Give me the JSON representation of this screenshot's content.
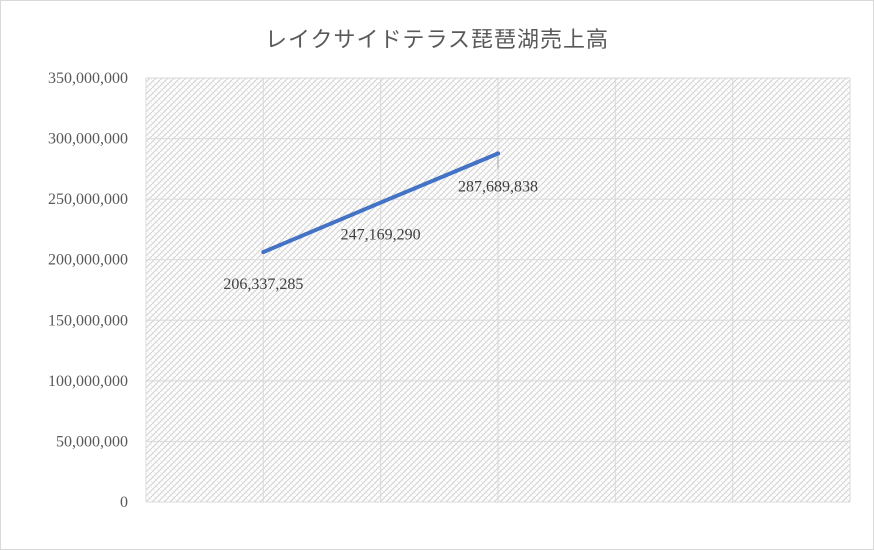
{
  "chart_data": {
    "type": "line",
    "title": "レイクサイドテラス琵琶湖売上高",
    "xlabel": "",
    "ylabel": "",
    "categories": [
      "",
      "",
      ""
    ],
    "series": [
      {
        "values": [
          206337285,
          247169290,
          287689838
        ],
        "data_labels": [
          "206,337,285",
          "247,169,290",
          "287,689,838"
        ],
        "color": "#4472c4"
      }
    ],
    "ylim": [
      0,
      350000000
    ],
    "y_ticks": [
      0,
      50000000,
      100000000,
      150000000,
      200000000,
      250000000,
      300000000,
      350000000
    ],
    "y_tick_labels": [
      "0",
      "50,000,000",
      "100,000,000",
      "150,000,000",
      "200,000,000",
      "250,000,000",
      "300,000,000",
      "350,000,000"
    ],
    "grid": true,
    "legend": "none",
    "plot_area_pattern": "diagonal-hatch"
  }
}
